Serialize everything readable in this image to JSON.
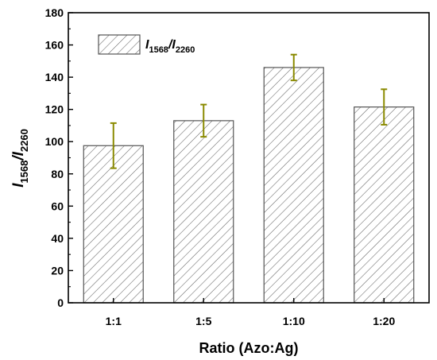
{
  "chart_data": {
    "type": "bar",
    "categories": [
      "1:1",
      "1:5",
      "1:10",
      "1:20"
    ],
    "series": [
      {
        "name_main1": "I",
        "name_sub1": "1568",
        "name_slash": "/",
        "name_main2": "I",
        "name_sub2": "2260",
        "values": [
          97.5,
          113,
          146,
          121.5
        ],
        "error": [
          14,
          10,
          8,
          11
        ]
      }
    ],
    "xlabel": "Ratio (Azo:Ag)",
    "ylabel_main1": "I",
    "ylabel_sub1": "1568",
    "ylabel_slash": "/",
    "ylabel_main2": "I",
    "ylabel_sub2": "2260",
    "ylim": [
      0,
      180
    ],
    "yticks": [
      0,
      20,
      40,
      60,
      80,
      100,
      120,
      140,
      160,
      180
    ],
    "grid": false,
    "legend_position": "top-left",
    "bar_fill": "hatched",
    "bar_stroke_color": "#555555",
    "hatch_color": "#666666",
    "error_bar_color": "#8a8a00"
  }
}
